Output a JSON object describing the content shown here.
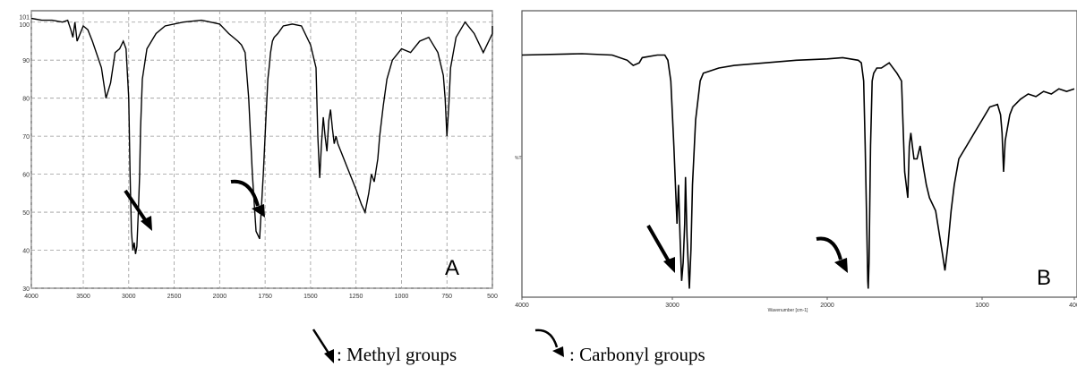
{
  "chart_data": [
    {
      "type": "line",
      "panel": "A",
      "xlabel": "",
      "ylabel": "",
      "x_ticks": [
        "4000",
        "3500",
        "3000",
        "2500",
        "2000",
        "1750",
        "1500",
        "1250",
        "1000",
        "750",
        "500"
      ],
      "y_ticks": [
        "101",
        "100",
        "90",
        "80",
        "70",
        "60",
        "50",
        "40",
        "30"
      ],
      "ylim": [
        30,
        103
      ],
      "xlim": [
        4000,
        450
      ],
      "grid": true,
      "series": [
        {
          "x": [
            4000,
            3900,
            3800,
            3700,
            3650,
            3620,
            3600,
            3580,
            3560,
            3500,
            3450,
            3400,
            3300,
            3250,
            3200,
            3150,
            3100,
            3060,
            3030,
            3000,
            2985,
            2970,
            2955,
            2940,
            2925,
            2910,
            2895,
            2880,
            2870,
            2850,
            2800,
            2700,
            2600,
            2400,
            2200,
            2100,
            2000,
            1950,
            1900,
            1880,
            1860,
            1840,
            1820,
            1800,
            1780,
            1760,
            1745,
            1735,
            1728,
            1720,
            1710,
            1700,
            1680,
            1650,
            1600,
            1550,
            1500,
            1470,
            1460,
            1450,
            1440,
            1430,
            1420,
            1410,
            1400,
            1390,
            1380,
            1370,
            1360,
            1350,
            1300,
            1250,
            1220,
            1200,
            1180,
            1165,
            1150,
            1130,
            1120,
            1100,
            1080,
            1050,
            1000,
            950,
            900,
            850,
            800,
            770,
            760,
            750,
            740,
            730,
            700,
            650,
            600,
            550,
            500,
            450
          ],
          "y": [
            101,
            100.5,
            100.5,
            100,
            100.5,
            98,
            96,
            100,
            95,
            99,
            98,
            95,
            88,
            80,
            84,
            92,
            93,
            95,
            93,
            80,
            60,
            45,
            40,
            42,
            39,
            41,
            50,
            60,
            72,
            85,
            93,
            97,
            99,
            100,
            100.5,
            100,
            99.5,
            97,
            95,
            94,
            92,
            80,
            60,
            45,
            43,
            60,
            75,
            85,
            88,
            92,
            95,
            96,
            97,
            99,
            99.5,
            99,
            94,
            88,
            70,
            59,
            68,
            75,
            70,
            66,
            74,
            77,
            72,
            68,
            70,
            68,
            62,
            56,
            52,
            50,
            55,
            60,
            58,
            64,
            70,
            78,
            85,
            90,
            93,
            92,
            95,
            96,
            92,
            86,
            80,
            70,
            78,
            88,
            96,
            100,
            97,
            92,
            97,
            99
          ]
        }
      ]
    },
    {
      "type": "line",
      "panel": "B",
      "xlabel": "Wavenumber [cm-1]",
      "ylabel": "%T",
      "ylim": [
        0,
        100
      ],
      "xlim": [
        4000,
        400
      ],
      "grid": false,
      "series": [
        {
          "x": [
            4000,
            3600,
            3400,
            3300,
            3260,
            3220,
            3200,
            3100,
            3050,
            3030,
            3010,
            2990,
            2970,
            2960,
            2950,
            2940,
            2930,
            2920,
            2915,
            2905,
            2890,
            2880,
            2870,
            2850,
            2820,
            2800,
            2750,
            2700,
            2600,
            2400,
            2200,
            2000,
            1900,
            1800,
            1780,
            1765,
            1755,
            1745,
            1738,
            1735,
            1730,
            1720,
            1710,
            1700,
            1680,
            1650,
            1600,
            1550,
            1520,
            1500,
            1480,
            1470,
            1460,
            1450,
            1440,
            1420,
            1400,
            1380,
            1360,
            1340,
            1300,
            1260,
            1240,
            1230,
            1220,
            1200,
            1180,
            1150,
            1100,
            1050,
            1000,
            950,
            900,
            880,
            870,
            860,
            850,
            820,
            800,
            750,
            700,
            650,
            600,
            550,
            500,
            450,
            400
          ],
          "y": [
            95,
            95.5,
            95,
            93,
            91,
            92,
            94,
            95,
            95,
            93,
            85,
            60,
            30,
            45,
            25,
            8,
            15,
            30,
            48,
            25,
            5,
            20,
            45,
            70,
            85,
            88,
            89,
            90,
            91,
            92,
            93,
            93.5,
            94,
            93,
            92,
            85,
            60,
            30,
            8,
            5,
            15,
            60,
            85,
            88,
            90,
            90,
            92,
            88,
            85,
            50,
            40,
            60,
            65,
            60,
            55,
            55,
            60,
            52,
            45,
            40,
            35,
            20,
            12,
            17,
            22,
            35,
            45,
            55,
            60,
            65,
            70,
            75,
            76,
            72,
            65,
            50,
            62,
            72,
            75,
            78,
            80,
            79,
            81,
            80,
            82,
            81,
            82
          ]
        }
      ]
    }
  ],
  "panel_a": {
    "letter": "A"
  },
  "panel_b": {
    "letter": "B",
    "x_ticks": [
      "4000",
      "3000",
      "2000",
      "1000",
      "400"
    ],
    "xlabel": "Wavenumber [cm-1]",
    "ylabel": "%T"
  },
  "legend": {
    "methyl_label": ": Methyl groups",
    "carbonyl_label": ": Carbonyl groups"
  },
  "colors": {
    "line": "#000000",
    "grid": "#9a9a9a",
    "frame": "#555555"
  }
}
